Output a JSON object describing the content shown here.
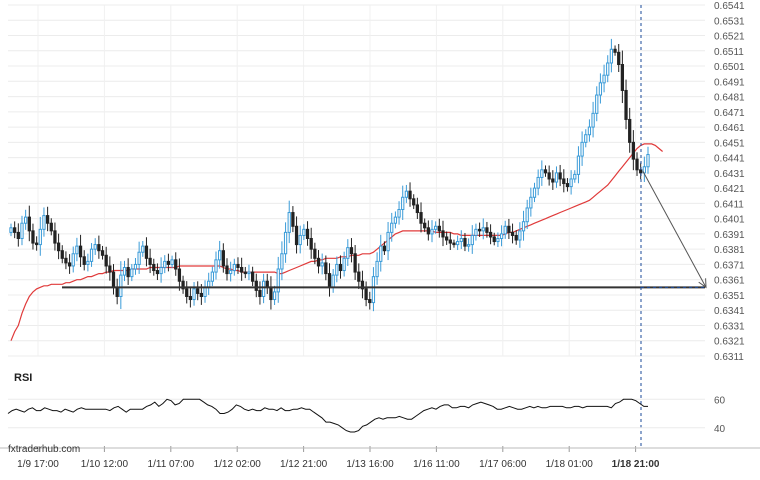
{
  "chart_data": {
    "type": "candlestick",
    "instrument_panel": "price",
    "indicator_label": "RSI",
    "watermark": "fxtraderhub.com",
    "x_tick_labels": [
      "1/9 17:00",
      "1/10 12:00",
      "1/11 07:00",
      "1/12 02:00",
      "1/12 21:00",
      "1/13 16:00",
      "1/16 11:00",
      "1/17 06:00",
      "1/18 01:00",
      "1/18 21:00"
    ],
    "current_x_label": "1/18 21:00",
    "y_tick_labels": [
      "0.6541",
      "0.6531",
      "0.6521",
      "0.6511",
      "0.6501",
      "0.6491",
      "0.6481",
      "0.6471",
      "0.6461",
      "0.6451",
      "0.6441",
      "0.6431",
      "0.6421",
      "0.6411",
      "0.6401",
      "0.6391",
      "0.6381",
      "0.6371",
      "0.6361",
      "0.6351",
      "0.6341",
      "0.6331",
      "0.6321",
      "0.6311"
    ],
    "ylim": [
      0.6311,
      0.6541
    ],
    "support_level": 0.6356,
    "projection": {
      "from": 0.6432,
      "to": 0.6356
    },
    "close": [
      0.6395,
      0.6392,
      0.6388,
      0.6398,
      0.6402,
      0.6393,
      0.6385,
      0.6384,
      0.6394,
      0.6403,
      0.6398,
      0.6393,
      0.6385,
      0.638,
      0.6375,
      0.6372,
      0.637,
      0.6378,
      0.6383,
      0.6376,
      0.6371,
      0.6373,
      0.6381,
      0.6384,
      0.638,
      0.6377,
      0.637,
      0.6366,
      0.6356,
      0.635,
      0.6364,
      0.6369,
      0.6363,
      0.6368,
      0.6371,
      0.6379,
      0.6383,
      0.6375,
      0.6371,
      0.6367,
      0.6365,
      0.6369,
      0.6373,
      0.6371,
      0.6374,
      0.6368,
      0.636,
      0.6355,
      0.635,
      0.6348,
      0.6355,
      0.6352,
      0.635,
      0.6356,
      0.636,
      0.6366,
      0.6374,
      0.638,
      0.637,
      0.6365,
      0.6367,
      0.6371,
      0.6369,
      0.6366,
      0.6365,
      0.6366,
      0.636,
      0.6354,
      0.635,
      0.636,
      0.6356,
      0.6348,
      0.6353,
      0.6368,
      0.6378,
      0.6392,
      0.6405,
      0.6396,
      0.6384,
      0.639,
      0.6394,
      0.6388,
      0.6381,
      0.6375,
      0.637,
      0.6372,
      0.6365,
      0.6356,
      0.6364,
      0.6371,
      0.6367,
      0.6375,
      0.6382,
      0.6378,
      0.6366,
      0.636,
      0.6355,
      0.6348,
      0.6346,
      0.6363,
      0.6373,
      0.6383,
      0.638,
      0.6392,
      0.6398,
      0.6402,
      0.6407,
      0.6415,
      0.6419,
      0.6414,
      0.641,
      0.6405,
      0.6398,
      0.6395,
      0.6391,
      0.6394,
      0.6396,
      0.6393,
      0.6389,
      0.6387,
      0.6385,
      0.6384,
      0.6386,
      0.6388,
      0.6383,
      0.6384,
      0.639,
      0.6394,
      0.6393,
      0.6395,
      0.6392,
      0.6389,
      0.6386,
      0.6388,
      0.6391,
      0.6396,
      0.6392,
      0.639,
      0.6387,
      0.6393,
      0.6399,
      0.6408,
      0.6415,
      0.6421,
      0.6428,
      0.6433,
      0.6431,
      0.6427,
      0.6425,
      0.6431,
      0.6427,
      0.6424,
      0.6422,
      0.6427,
      0.643,
      0.6442,
      0.6451,
      0.6456,
      0.6461,
      0.647,
      0.6482,
      0.649,
      0.6495,
      0.6503,
      0.6512,
      0.651,
      0.6502,
      0.6485,
      0.6466,
      0.6451,
      0.644,
      0.6433,
      0.6431,
      0.6435,
      0.6443
    ],
    "ma_values": [
      0.6321,
      0.6327,
      0.6331,
      0.6339,
      0.6345,
      0.635,
      0.6353,
      0.6355,
      0.6356,
      0.6357,
      0.6357,
      0.6358,
      0.6358,
      0.6358,
      0.6358,
      0.6359,
      0.6359,
      0.636,
      0.6361,
      0.6361,
      0.6362,
      0.6363,
      0.6363,
      0.6364,
      0.6365,
      0.6365,
      0.6366,
      0.6366,
      0.6367,
      0.6367,
      0.6367,
      0.6367,
      0.6367,
      0.6368,
      0.6368,
      0.6368,
      0.6368,
      0.6368,
      0.6369,
      0.6369,
      0.6369,
      0.6369,
      0.6369,
      0.6369,
      0.6369,
      0.6369,
      0.637,
      0.637,
      0.637,
      0.637,
      0.637,
      0.637,
      0.637,
      0.637,
      0.637,
      0.637,
      0.637,
      0.637,
      0.6369,
      0.6368,
      0.6368,
      0.6367,
      0.6367,
      0.6366,
      0.6366,
      0.6366,
      0.6366,
      0.6366,
      0.6366,
      0.6366,
      0.6366,
      0.6366,
      0.6366,
      0.6365,
      0.6365,
      0.6366,
      0.6367,
      0.6368,
      0.6369,
      0.637,
      0.6371,
      0.6372,
      0.6373,
      0.6373,
      0.6374,
      0.6374,
      0.6375,
      0.6375,
      0.6375,
      0.6375,
      0.6376,
      0.6376,
      0.6376,
      0.6377,
      0.6377,
      0.6377,
      0.6378,
      0.6378,
      0.6378,
      0.6379,
      0.6381,
      0.6383,
      0.6385,
      0.6387,
      0.6389,
      0.6391,
      0.6392,
      0.6393,
      0.6393,
      0.6393,
      0.6393,
      0.6393,
      0.6393,
      0.6393,
      0.6393,
      0.6393,
      0.6392,
      0.6392,
      0.6392,
      0.6392,
      0.6392,
      0.6391,
      0.6391,
      0.639,
      0.639,
      0.639,
      0.639,
      0.639,
      0.639,
      0.639,
      0.639,
      0.639,
      0.639,
      0.639,
      0.639,
      0.6391,
      0.6392,
      0.6392,
      0.6393,
      0.6394,
      0.6395,
      0.6396,
      0.6397,
      0.6398,
      0.6399,
      0.64,
      0.6401,
      0.6402,
      0.6403,
      0.6404,
      0.6405,
      0.6406,
      0.6407,
      0.6408,
      0.6409,
      0.641,
      0.6411,
      0.6412,
      0.6413,
      0.6415,
      0.6417,
      0.6419,
      0.6421,
      0.6423,
      0.6426,
      0.6429,
      0.6432,
      0.6435,
      0.6438,
      0.6441,
      0.6444,
      0.6447,
      0.6449,
      0.645,
      0.645,
      0.645,
      0.6449,
      0.6447,
      0.6445
    ],
    "rsi_ticks": [
      "60",
      "40"
    ],
    "rsi_ylim": [
      30,
      70
    ],
    "rsi_values": [
      50,
      52,
      53,
      52,
      51,
      53,
      54,
      52,
      52,
      54,
      53,
      52,
      52,
      51,
      53,
      52,
      51,
      53,
      54,
      53,
      53,
      53,
      53,
      53,
      53,
      52,
      54,
      55,
      53,
      51,
      53,
      53,
      53,
      53,
      55,
      56,
      58,
      55,
      57,
      60,
      59,
      56,
      57,
      60,
      60,
      60,
      60,
      60,
      58,
      56,
      55,
      53,
      50,
      50,
      51,
      53,
      56,
      55,
      53,
      52,
      53,
      52,
      52,
      54,
      53,
      53,
      52,
      54,
      52,
      52,
      53,
      53,
      54,
      53,
      53,
      51,
      49,
      47,
      44,
      44,
      43,
      42,
      40,
      38,
      37,
      37,
      38,
      41,
      42,
      44,
      46,
      47,
      46,
      47,
      47,
      47,
      48,
      47,
      46,
      46,
      48,
      50,
      52,
      53,
      54,
      53,
      55,
      56,
      56,
      54,
      54,
      55,
      55,
      54,
      56,
      57,
      58,
      57,
      56,
      55,
      53,
      53,
      54,
      55,
      54,
      53,
      53,
      54,
      55,
      54,
      55,
      54,
      54,
      55,
      55,
      55,
      55,
      54,
      54,
      55,
      55,
      54,
      55,
      55,
      55,
      55,
      55,
      55,
      54,
      57,
      58,
      60,
      60,
      60,
      59,
      57,
      55,
      55
    ]
  }
}
